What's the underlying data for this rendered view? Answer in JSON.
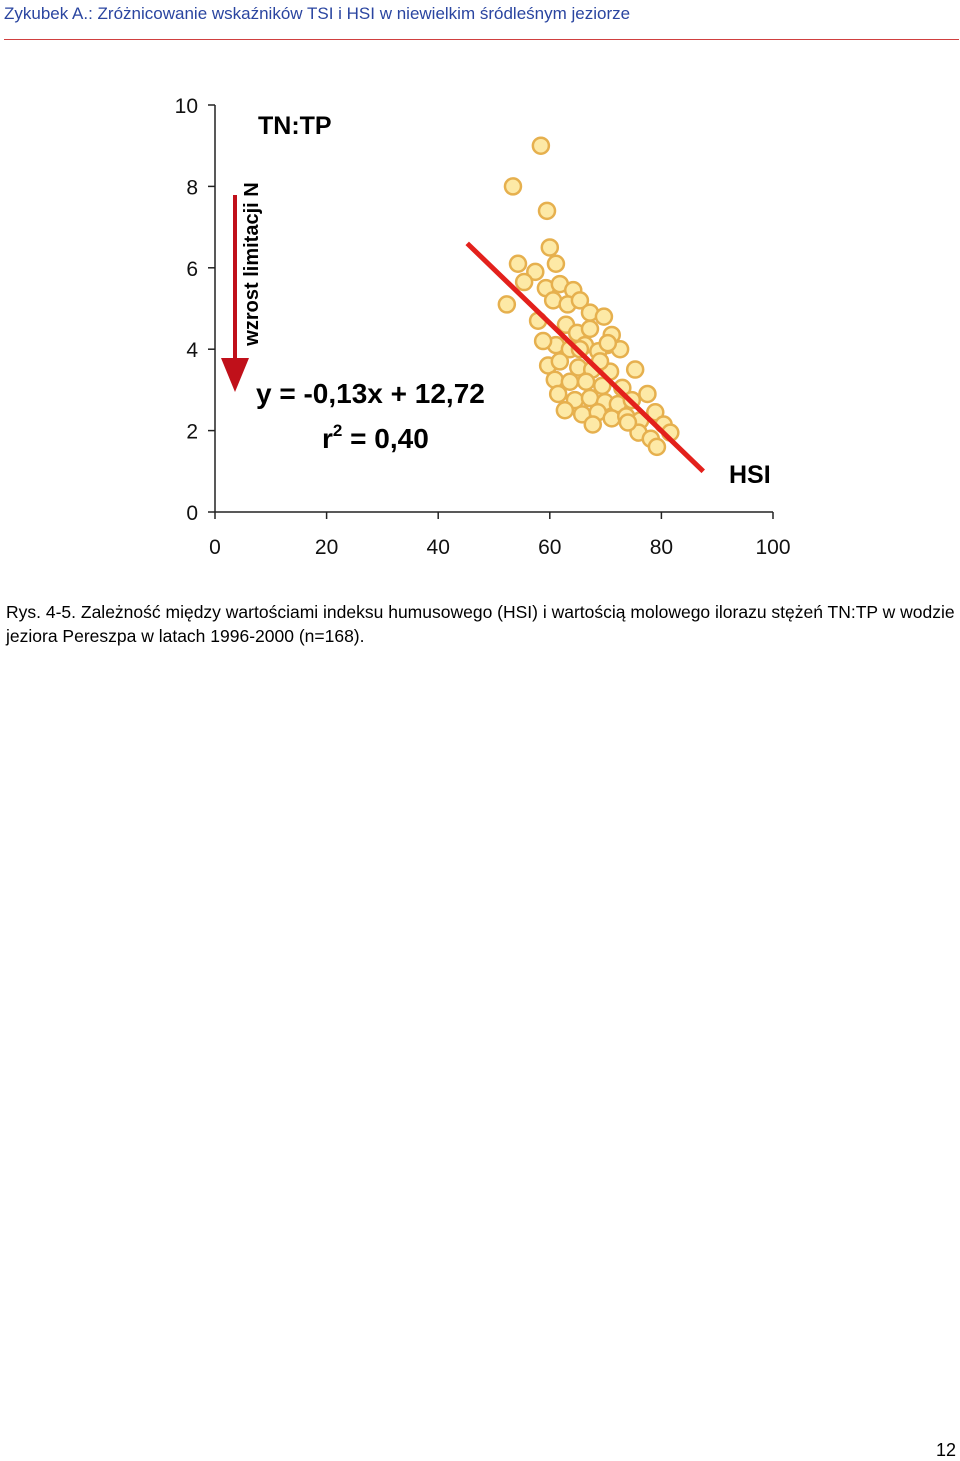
{
  "header": {
    "title": "Zykubek A.: Zróżnicowanie wskaźników TSI i HSI w niewielkim śródleśnym jeziorze"
  },
  "chart_data": {
    "type": "scatter",
    "x": [
      58.4,
      53.4,
      59.5,
      60.0,
      54.3,
      57.4,
      61.1,
      55.4,
      52.3,
      59.3,
      61.8,
      64.2,
      57.9,
      60.6,
      63.2,
      65.4,
      67.2,
      69.7,
      62.9,
      64.9,
      67.2,
      71.1,
      61.1,
      63.6,
      66.3,
      70.3,
      68.7,
      72.6,
      59.7,
      61.8,
      65.1,
      67.6,
      70.8,
      75.3,
      60.9,
      63.6,
      66.5,
      69.4,
      73.0,
      77.5,
      61.5,
      64.5,
      67.2,
      69.9,
      72.2,
      74.7,
      62.7,
      65.8,
      68.6,
      71.1,
      73.7,
      76.2,
      78.9,
      67.7,
      75.9,
      78.1,
      80.4,
      81.6,
      79.2,
      65.4,
      69.0,
      58.8,
      74.0,
      70.4
    ],
    "values": [
      9.0,
      8.0,
      7.4,
      6.5,
      6.1,
      5.9,
      6.1,
      5.65,
      5.1,
      5.5,
      5.6,
      5.45,
      4.7,
      5.2,
      5.1,
      5.2,
      4.9,
      4.8,
      4.6,
      4.4,
      4.5,
      4.35,
      4.1,
      4.0,
      4.1,
      4.1,
      3.95,
      4.0,
      3.6,
      3.7,
      3.55,
      3.5,
      3.45,
      3.5,
      3.25,
      3.2,
      3.2,
      3.1,
      3.05,
      2.9,
      2.9,
      2.75,
      2.8,
      2.7,
      2.65,
      2.75,
      2.5,
      2.4,
      2.45,
      2.3,
      2.35,
      2.25,
      2.45,
      2.15,
      1.95,
      1.8,
      2.15,
      1.95,
      1.6,
      4.0,
      3.7,
      4.2,
      2.2,
      4.15
    ],
    "color": "#fde9a6",
    "edgecolor": "#e6b04e",
    "trendline": {
      "x": [
        45.2,
        87.5
      ],
      "values": [
        6.6,
        1.0
      ],
      "color": "#e3211c"
    },
    "xlim": [
      0,
      100
    ],
    "xticks": [
      0,
      20,
      40,
      60,
      80,
      100
    ],
    "ylim": [
      0,
      10
    ],
    "yticks": [
      0,
      2,
      4,
      6,
      8,
      10
    ],
    "annotations": {
      "tn_tp": "TN:TP",
      "arrow_label": "wzrost limitacji N",
      "equation": "y = -0,13x + 12,72",
      "r2_base": "r",
      "r2_sup": "2",
      "r2_value": " = 0,40",
      "hsi": "HSI"
    }
  },
  "caption": "Rys. 4-5. Zależność między wartościami indeksu humusowego (HSI) i wartością molowego ilorazu stężeń TN:TP w wodzie jeziora Pereszpa w latach 1996-2000 (n=168).",
  "page_number": "12"
}
